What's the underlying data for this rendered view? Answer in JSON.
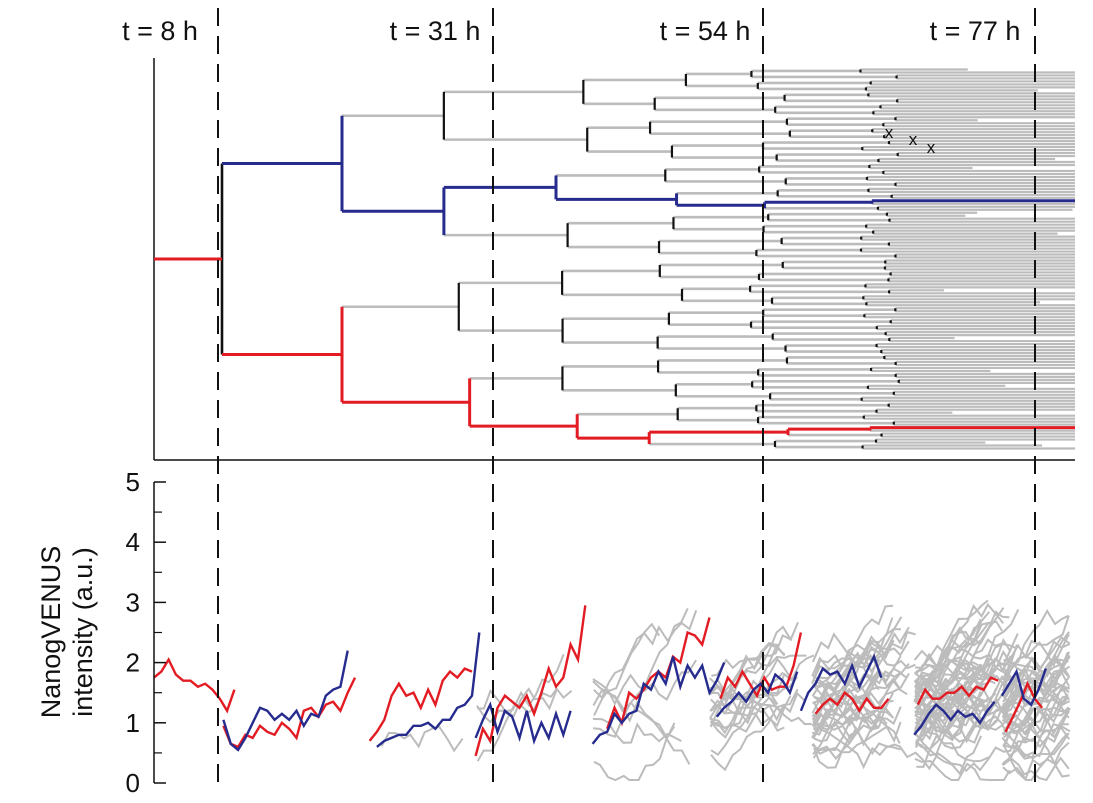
{
  "time_labels": [
    "t = 8 h",
    "t = 31 h",
    "t = 54 h",
    "t = 77 h"
  ],
  "colors": {
    "red": "#e31b23",
    "blue": "#262b8e",
    "gray": "#bcbcbc",
    "axis": "#111111"
  },
  "dead_marker": "x",
  "chart_data": {
    "type": "line",
    "title": "",
    "xlabel": "",
    "ylabel": "NanogVENUS\nintensity (a.u.)",
    "ylabel_lines": [
      "NanogVENUS",
      "intensity (a.u.)"
    ],
    "ylim": [
      0,
      5
    ],
    "yticks": [
      0,
      1,
      2,
      3,
      4,
      5
    ],
    "xlim": [
      0,
      93
    ],
    "time_markers_h": [
      8,
      31,
      54,
      77
    ],
    "series": [
      {
        "name": "",
        "color": "red",
        "segments": [
          {
            "t_start": 0,
            "dt": 1,
            "values": [
              1.75,
              1.85,
              2.05,
              1.8,
              1.7,
              1.7,
              1.6,
              1.65,
              1.55,
              1.4,
              1.2,
              1.55
            ]
          },
          {
            "t_start": 9.5,
            "dt": 1,
            "values": [
              0.95,
              0.65,
              0.6,
              0.8,
              0.75,
              0.95,
              0.85,
              0.8,
              1.0,
              0.9,
              0.75,
              1.2,
              1.25,
              1.1,
              1.3,
              1.35,
              1.2,
              1.5,
              1.75
            ]
          },
          {
            "t_start": 29.5,
            "dt": 1,
            "values": [
              0.7,
              0.85,
              1.05,
              1.45,
              1.65,
              1.45,
              1.5,
              1.25,
              1.55,
              1.3,
              1.7,
              1.85,
              1.75,
              1.9,
              1.85
            ]
          },
          {
            "t_start": 44,
            "dt": 1,
            "values": [
              0.45,
              0.9,
              0.7,
              1.25,
              1.45,
              1.35,
              1.25,
              1.45,
              1.15,
              1.5,
              1.9,
              1.6,
              1.75,
              2.3,
              2.05,
              2.95
            ]
          },
          {
            "t_start": 62,
            "dt": 1,
            "values": [
              0.9,
              1.25,
              1.0,
              1.5,
              1.4,
              1.55,
              1.75,
              1.85,
              1.75,
              2.1,
              2.0,
              2.5,
              2.45,
              2.3,
              2.75
            ]
          },
          {
            "t_start": 77.5,
            "dt": 1,
            "values": [
              1.4,
              1.75,
              1.6,
              1.85,
              1.65,
              1.45,
              1.75,
              1.55,
              1.6,
              1.6,
              1.95,
              2.5
            ]
          },
          {
            "t_start": 90.5,
            "dt": 1,
            "values": [
              1.15,
              1.3,
              1.4,
              1.3,
              1.5,
              1.4,
              1.2,
              1.4,
              1.25,
              1.25,
              1.4
            ]
          },
          {
            "t_start": 104.5,
            "dt": 1,
            "values": [
              1.3,
              1.55,
              1.4,
              1.4,
              1.5,
              1.5,
              1.6,
              1.45,
              1.6,
              1.55,
              1.75,
              1.7
            ]
          },
          {
            "t_start": 116.5,
            "dt": 1,
            "values": [
              0.85,
              1.1,
              1.35,
              1.65,
              1.4,
              1.25
            ]
          }
        ]
      },
      {
        "name": "",
        "color": "blue",
        "segments": [
          {
            "t_start": 9.5,
            "dt": 1,
            "values": [
              1.05,
              0.65,
              0.55,
              0.75,
              1.0,
              1.25,
              1.2,
              1.05,
              1.15,
              1.05,
              1.2,
              0.95,
              1.15,
              1.1,
              1.45,
              1.55,
              1.6,
              2.2
            ]
          },
          {
            "t_start": 30.5,
            "dt": 1,
            "values": [
              0.6,
              0.7,
              0.75,
              0.8,
              0.8,
              0.95,
              0.95,
              1.0,
              0.9,
              1.05,
              1.05,
              1.25,
              1.3,
              1.45,
              2.5
            ]
          },
          {
            "t_start": 44,
            "dt": 1,
            "values": [
              0.75,
              1.05,
              1.3,
              0.85,
              1.2,
              1.1,
              0.75,
              1.2,
              0.7,
              1.0,
              0.75,
              1.15,
              0.8,
              1.2
            ]
          },
          {
            "t_start": 60,
            "dt": 1,
            "values": [
              0.65,
              0.8,
              0.85,
              1.15,
              1.0,
              1.15,
              1.2,
              1.65,
              1.55,
              1.85,
              1.65,
              2.1,
              1.6,
              1.95,
              1.75,
              1.95,
              1.5,
              1.7,
              2.0
            ]
          },
          {
            "t_start": 77,
            "dt": 1,
            "values": [
              1.1,
              1.25,
              1.35,
              1.5,
              1.35,
              1.55,
              1.65,
              1.5,
              1.8,
              1.7,
              1.5,
              1.85
            ]
          },
          {
            "t_start": 88.5,
            "dt": 1,
            "values": [
              1.2,
              1.5,
              1.65,
              1.9,
              1.8,
              1.85,
              1.65,
              1.95,
              1.6,
              1.85,
              2.1,
              1.75
            ]
          },
          {
            "t_start": 104,
            "dt": 1,
            "values": [
              0.8,
              0.95,
              1.15,
              1.3,
              1.2,
              1.05,
              1.2,
              1.1,
              1.15,
              1.0,
              1.2,
              1.35
            ]
          },
          {
            "t_start": 116,
            "dt": 1,
            "values": [
              1.45,
              1.65,
              1.85,
              1.4,
              1.3,
              1.55,
              1.9
            ]
          }
        ]
      }
    ],
    "grey_traces_note": "",
    "lineage_tree": {
      "orientation": "horizontal, time on x-axis",
      "root_color": "red",
      "highlighted_lineages": [
        "red",
        "blue"
      ],
      "other_branches_color": "gray"
    }
  }
}
